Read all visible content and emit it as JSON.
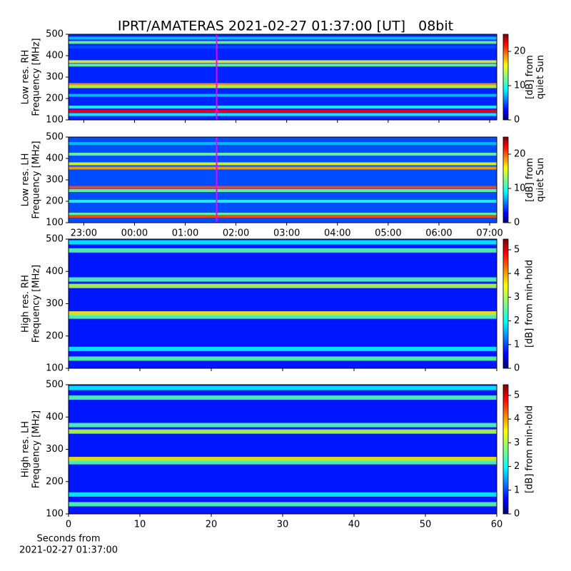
{
  "chart_data": [
    {
      "type": "heatmap",
      "title": "IPRT/AMATERAS 2021-02-27 01:37:00 [UT]   08bit",
      "ylabel": [
        "Low res. RH",
        "Frequency [MHz]"
      ],
      "ylim": [
        100,
        500
      ],
      "yticks": [
        100,
        200,
        300,
        400,
        500
      ],
      "xlim": [
        22.7,
        31.14
      ],
      "cursor_x": 25.62,
      "cursor_color": "#ff00ff",
      "background": 4,
      "bands": [
        {
          "freq": 482,
          "value": 8
        },
        {
          "freq": 462,
          "value": 12
        },
        {
          "freq": 440,
          "value": 5
        },
        {
          "freq": 372,
          "value": 15
        },
        {
          "freq": 356,
          "value": 12
        },
        {
          "freq": 265,
          "value": 18
        },
        {
          "freq": 255,
          "value": 14
        },
        {
          "freq": 215,
          "value": 8
        },
        {
          "freq": 160,
          "value": 10
        },
        {
          "freq": 140,
          "value": 22
        },
        {
          "freq": 125,
          "value": 10
        }
      ],
      "colorbar": {
        "label": [
          "[dB] from",
          "quiet Sun"
        ],
        "lim": [
          0,
          25
        ],
        "ticks": [
          0,
          10,
          20
        ]
      }
    },
    {
      "type": "heatmap",
      "ylabel": [
        "Low res. LH",
        "Frequency [MHz]"
      ],
      "ylim": [
        100,
        500
      ],
      "yticks": [
        100,
        200,
        300,
        400,
        500
      ],
      "xlim": [
        22.7,
        31.14
      ],
      "cursor_x": 25.62,
      "cursor_color": "#ff00ff",
      "xticks": [
        {
          "value": 23,
          "label": "23:00"
        },
        {
          "value": 24,
          "label": "00:00"
        },
        {
          "value": 25,
          "label": "01:00"
        },
        {
          "value": 26,
          "label": "02:00"
        },
        {
          "value": 27,
          "label": "03:00"
        },
        {
          "value": 28,
          "label": "04:00"
        },
        {
          "value": 29,
          "label": "05:00"
        },
        {
          "value": 30,
          "label": "06:00"
        },
        {
          "value": 31,
          "label": "07:00"
        }
      ],
      "background": 5,
      "bands": [
        {
          "freq": 470,
          "value": 8
        },
        {
          "freq": 420,
          "value": 12
        },
        {
          "freq": 375,
          "value": 15
        },
        {
          "freq": 355,
          "value": 18
        },
        {
          "freq": 265,
          "value": 20
        },
        {
          "freq": 250,
          "value": 12
        },
        {
          "freq": 200,
          "value": 10
        },
        {
          "freq": 140,
          "value": 12
        },
        {
          "freq": 130,
          "value": 20
        }
      ],
      "colorbar": {
        "label": [
          "[dB] from",
          "quiet Sun"
        ],
        "lim": [
          0,
          25
        ],
        "ticks": [
          0,
          10,
          20
        ]
      }
    },
    {
      "type": "heatmap",
      "ylabel": [
        "High res. RH",
        "Frequency [MHz]"
      ],
      "ylim": [
        100,
        500
      ],
      "yticks": [
        100,
        200,
        300,
        400,
        500
      ],
      "xlim": [
        0,
        60
      ],
      "background": 0.8,
      "bands": [
        {
          "freq": 490,
          "value": 2
        },
        {
          "freq": 465,
          "value": 2.5
        },
        {
          "freq": 375,
          "value": 2.5
        },
        {
          "freq": 355,
          "value": 3
        },
        {
          "freq": 270,
          "value": 3.5
        },
        {
          "freq": 260,
          "value": 2.5
        },
        {
          "freq": 160,
          "value": 2
        },
        {
          "freq": 130,
          "value": 2.5
        }
      ],
      "colorbar": {
        "label": [
          "[dB] from min-hold"
        ],
        "lim": [
          0,
          5.45
        ],
        "ticks": [
          0,
          1,
          2,
          3,
          4,
          5
        ]
      }
    },
    {
      "type": "heatmap",
      "ylabel": [
        "High res. LH",
        "Frequency [MHz]"
      ],
      "ylim": [
        100,
        500
      ],
      "yticks": [
        100,
        200,
        300,
        400,
        500
      ],
      "xlim": [
        0,
        60
      ],
      "xticks": [
        0,
        10,
        20,
        30,
        40,
        50,
        60
      ],
      "xlabel": [
        "Seconds from",
        "2021-02-27 01:37:00"
      ],
      "background": 0.8,
      "bands": [
        {
          "freq": 490,
          "value": 2
        },
        {
          "freq": 460,
          "value": 2.5
        },
        {
          "freq": 375,
          "value": 2.5
        },
        {
          "freq": 355,
          "value": 3
        },
        {
          "freq": 270,
          "value": 3.5
        },
        {
          "freq": 260,
          "value": 2.5
        },
        {
          "freq": 160,
          "value": 2
        },
        {
          "freq": 130,
          "value": 2.5
        }
      ],
      "colorbar": {
        "label": [
          "[dB] from min-hold"
        ],
        "lim": [
          0,
          5.45
        ],
        "ticks": [
          0,
          1,
          2,
          3,
          4,
          5
        ]
      }
    }
  ]
}
